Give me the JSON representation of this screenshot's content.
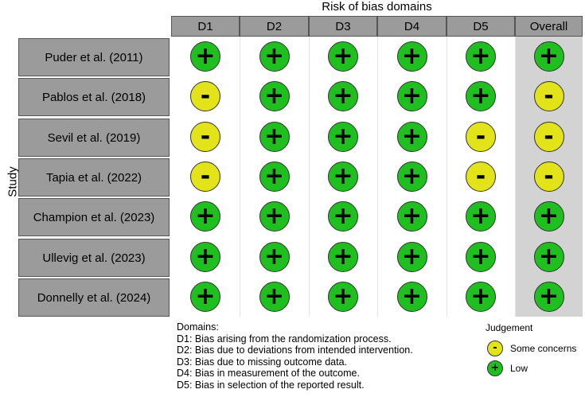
{
  "header_title": "Risk of bias domains",
  "y_axis_label": "Study",
  "columns": [
    "D1",
    "D2",
    "D3",
    "D4",
    "D5",
    "Overall"
  ],
  "studies": [
    {
      "name": "Puder et al. (2011)",
      "judgements": [
        "low",
        "low",
        "low",
        "low",
        "low",
        "low"
      ]
    },
    {
      "name": "Pablos et al. (2018)",
      "judgements": [
        "some",
        "low",
        "low",
        "low",
        "low",
        "some"
      ]
    },
    {
      "name": "Sevil et al. (2019)",
      "judgements": [
        "some",
        "low",
        "low",
        "low",
        "some",
        "some"
      ]
    },
    {
      "name": "Tapia et al. (2022)",
      "judgements": [
        "some",
        "low",
        "low",
        "low",
        "some",
        "some"
      ]
    },
    {
      "name": "Champion et al. (2023)",
      "judgements": [
        "low",
        "low",
        "low",
        "low",
        "low",
        "low"
      ]
    },
    {
      "name": "Ullevig et al. (2023)",
      "judgements": [
        "low",
        "low",
        "low",
        "low",
        "low",
        "low"
      ]
    },
    {
      "name": "Donnelly et al. (2024)",
      "judgements": [
        "low",
        "low",
        "low",
        "low",
        "low",
        "low"
      ]
    }
  ],
  "symbols": {
    "low": "+",
    "some": "-"
  },
  "colors": {
    "low": "#1fbf1f",
    "some": "#e3e31a",
    "header_bg": "#9b9b9b",
    "overall_bg": "#d3d3d3"
  },
  "domains_title": "Domains:",
  "domains": [
    "D1: Bias arising from the randomization process.",
    "D2: Bias due to deviations from intended intervention.",
    "D3: Bias due to missing outcome data.",
    "D4: Bias in measurement of the outcome.",
    "D5: Bias in selection of the reported result."
  ],
  "legend": {
    "title": "Judgement",
    "items": [
      {
        "key": "some",
        "symbol": "-",
        "label": "Some concerns"
      },
      {
        "key": "low",
        "symbol": "+",
        "label": "Low"
      }
    ]
  }
}
